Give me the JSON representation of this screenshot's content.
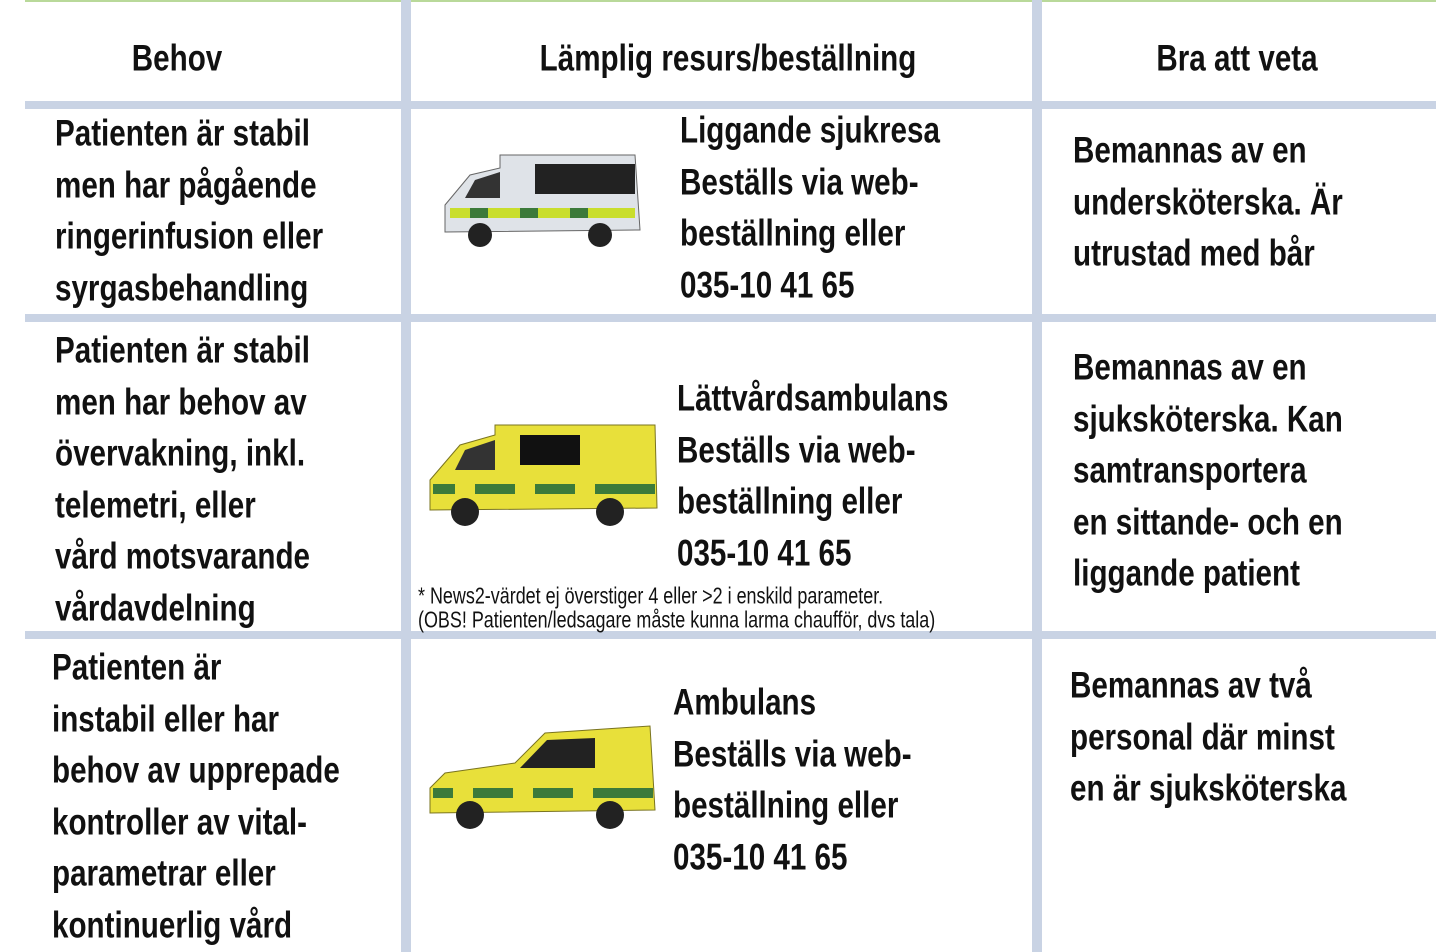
{
  "header": {
    "columns": [
      "Behov",
      "Lämplig resurs/beställning",
      "Bra att veta"
    ]
  },
  "rows": [
    {
      "need": [
        "Patienten är stabil",
        "men har pågående",
        "ringerinfusion eller",
        "syrgasbehandling"
      ],
      "resource": [
        "Liggande sjukresa",
        "Beställs via web-",
        "beställning eller",
        "035-10 41 65"
      ],
      "info": [
        "Bemannas av en",
        "undersköterska. Är",
        "utrustad med bår"
      ]
    },
    {
      "need": [
        "Patienten är stabil",
        "men har behov av",
        "övervakning, inkl.",
        "telemetri, eller",
        "vård motsvarande",
        "vårdavdelning"
      ],
      "resource": [
        "Lättvårdsambulans",
        "Beställs via web-",
        "beställning eller",
        "035-10 41 65"
      ],
      "footnote": [
        "* News2-värdet ej överstiger 4 eller >2 i enskild parameter.",
        "(OBS! Patienten/ledsagare måste kunna larma chaufför, dvs tala)"
      ],
      "info": [
        "Bemannas av en",
        "sjuksköterska. Kan",
        "samtransportera",
        "en sittande- och en",
        "liggande patient"
      ]
    },
    {
      "need": [
        "Patienten är",
        "instabil eller har",
        "behov av upprepade",
        "kontroller av vital-",
        "parametrar eller",
        "kontinuerlig vård"
      ],
      "resource": [
        "Ambulans",
        "Beställs via web-",
        "beställning eller",
        "035-10 41 65"
      ],
      "info": [
        "Bemannas av två",
        "personal där minst",
        "en är sjuksköterska"
      ]
    }
  ]
}
